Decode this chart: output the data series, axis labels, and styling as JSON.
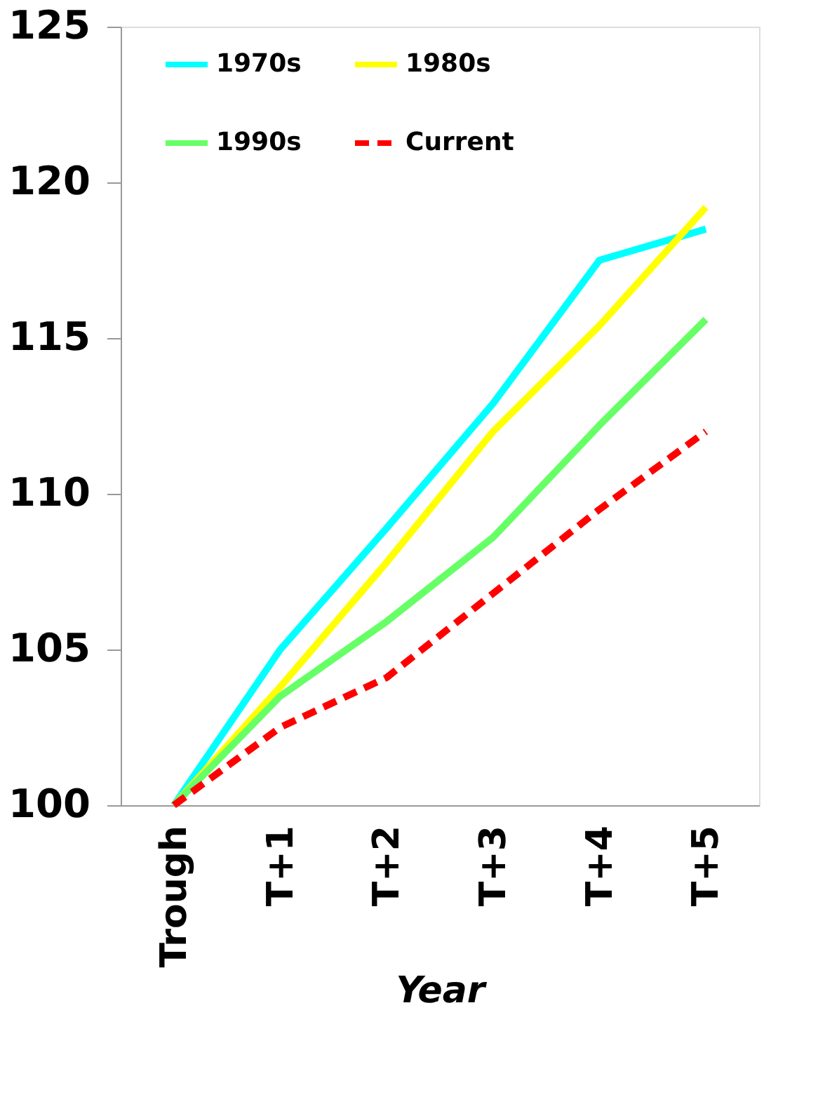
{
  "chart_data": {
    "type": "line",
    "xlabel": "Year",
    "categories": [
      "Trough",
      "T+1",
      "T+2",
      "T+3",
      "T+4",
      "T+5"
    ],
    "series": [
      {
        "name": "1970s",
        "color": "#00ffff",
        "line_style": "solid",
        "values": [
          100,
          105.0,
          108.9,
          112.9,
          117.5,
          118.5
        ]
      },
      {
        "name": "1980s",
        "color": "#ffff00",
        "line_style": "solid",
        "values": [
          100,
          103.8,
          107.8,
          112.0,
          115.4,
          119.2
        ]
      },
      {
        "name": "1990s",
        "color": "#66ff66",
        "line_style": "solid",
        "values": [
          100,
          103.5,
          105.9,
          108.6,
          112.2,
          115.6
        ]
      },
      {
        "name": "Current",
        "color": "#ff0000",
        "line_style": "dashed",
        "values": [
          100,
          102.5,
          104.1,
          106.8,
          109.5,
          112.0
        ]
      }
    ],
    "ylim": [
      100,
      125
    ],
    "yticks": [
      100,
      105,
      110,
      115,
      120,
      125
    ],
    "grid": false,
    "legend": "top",
    "marker": "none"
  }
}
